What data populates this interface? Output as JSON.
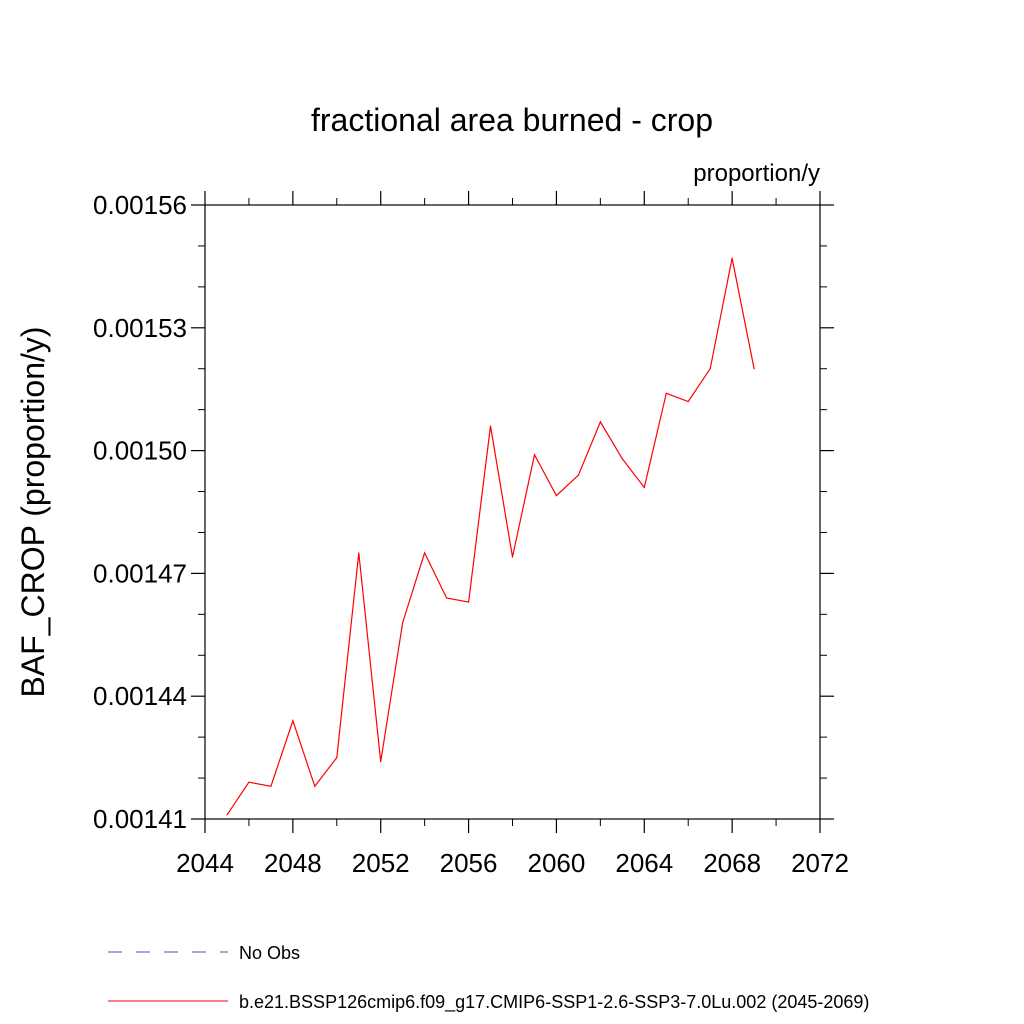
{
  "chart_data": {
    "type": "line",
    "title": "fractional area burned - crop",
    "units": "proportion/y",
    "xlabel": "",
    "ylabel": "BAF_CROP  (proportion/y)",
    "xlim": [
      2044,
      2072
    ],
    "ylim": [
      0.00141,
      0.00156
    ],
    "x_ticks": [
      2044,
      2048,
      2052,
      2056,
      2060,
      2064,
      2068,
      2072
    ],
    "x_tick_labels": [
      "2044",
      "2048",
      "2052",
      "2056",
      "2060",
      "2064",
      "2068",
      "2072"
    ],
    "y_ticks": [
      0.00141,
      0.00144,
      0.00147,
      0.0015,
      0.00153,
      0.00156
    ],
    "y_tick_labels": [
      "0.00141",
      "0.00144",
      "0.00147",
      "0.00150",
      "0.00153",
      "0.00156"
    ],
    "grid": false,
    "legend_position": "bottom",
    "series": [
      {
        "name": "b.e21.BSSP126cmip6.f09_g17.CMIP6-SSP1-2.6-SSP3-7.0Lu.002 (2045-2069)",
        "color": "#ff0000",
        "dash": "solid",
        "x": [
          2045,
          2046,
          2047,
          2048,
          2049,
          2050,
          2051,
          2052,
          2053,
          2054,
          2055,
          2056,
          2057,
          2058,
          2059,
          2060,
          2061,
          2062,
          2063,
          2064,
          2065,
          2066,
          2067,
          2068,
          2069
        ],
        "y": [
          0.001411,
          0.001419,
          0.001418,
          0.001434,
          0.001418,
          0.001425,
          0.001475,
          0.001424,
          0.001458,
          0.001475,
          0.001464,
          0.001463,
          0.001506,
          0.001474,
          0.001499,
          0.001489,
          0.001494,
          0.001507,
          0.001498,
          0.001491,
          0.001514,
          0.001512,
          0.00152,
          0.001547,
          0.00152
        ]
      }
    ],
    "legend": [
      {
        "label": "No Obs",
        "color": "#5050b4",
        "dash": "dashed"
      },
      {
        "label": "b.e21.BSSP126cmip6.f09_g17.CMIP6-SSP1-2.6-SSP3-7.0Lu.002 (2045-2069)",
        "color": "#ff0000",
        "dash": "solid"
      }
    ]
  }
}
